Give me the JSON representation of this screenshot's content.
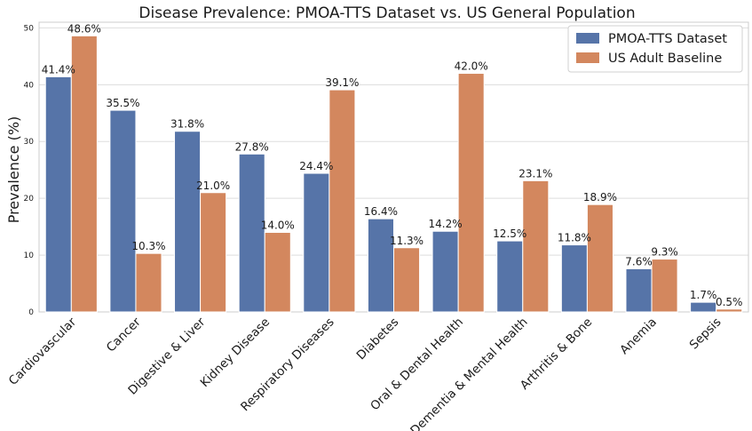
{
  "chart_data": {
    "type": "bar",
    "title": "Disease Prevalence: PMOA-TTS Dataset vs. US General Population",
    "xlabel": "",
    "ylabel": "Prevalence (%)",
    "ylim": [
      0,
      51
    ],
    "yticks": [
      0,
      10,
      20,
      30,
      40,
      50
    ],
    "grid": true,
    "legend_position": "top-right",
    "categories": [
      "Cardiovascular",
      "Cancer",
      "Digestive & Liver",
      "Kidney Disease",
      "Respiratory Diseases",
      "Diabetes",
      "Oral & Dental Health",
      "Dementia & Mental Health",
      "Arthritis & Bone",
      "Anemia",
      "Sepsis"
    ],
    "series": [
      {
        "name": "PMOA-TTS Dataset",
        "color": "#5674a8",
        "values": [
          41.4,
          35.5,
          31.8,
          27.8,
          24.4,
          16.4,
          14.2,
          12.5,
          11.8,
          7.6,
          1.7
        ],
        "labels": [
          "41.4%",
          "35.5%",
          "31.8%",
          "27.8%",
          "24.4%",
          "16.4%",
          "14.2%",
          "12.5%",
          "11.8%",
          "7.6%",
          "1.7%"
        ]
      },
      {
        "name": "US Adult Baseline",
        "color": "#d3875e",
        "values": [
          48.6,
          10.3,
          21.0,
          14.0,
          39.1,
          11.3,
          42.0,
          23.1,
          18.9,
          9.3,
          0.5
        ],
        "labels": [
          "48.6%",
          "10.3%",
          "21.0%",
          "14.0%",
          "39.1%",
          "11.3%",
          "42.0%",
          "23.1%",
          "18.9%",
          "9.3%",
          "0.5%"
        ]
      }
    ]
  }
}
